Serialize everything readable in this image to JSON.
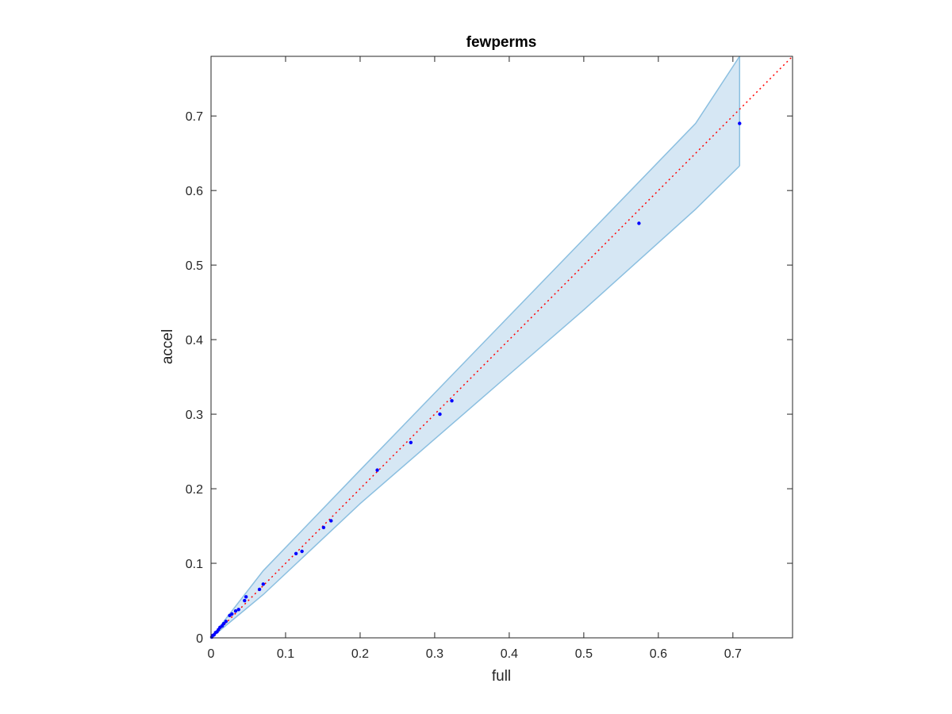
{
  "chart_data": {
    "type": "scatter",
    "title": "fewperms",
    "xlabel": "full",
    "ylabel": "accel",
    "xlim": [
      0,
      0.78
    ],
    "ylim": [
      0,
      0.78
    ],
    "grid": false,
    "legend": "none",
    "x_ticks": [
      "0",
      "0.1",
      "0.2",
      "0.3",
      "0.4",
      "0.5",
      "0.6",
      "0.7"
    ],
    "y_ticks": [
      "0",
      "0.1",
      "0.2",
      "0.3",
      "0.4",
      "0.5",
      "0.6",
      "0.7"
    ],
    "x_tick_values": [
      0,
      0.1,
      0.2,
      0.3,
      0.4,
      0.5,
      0.6,
      0.7
    ],
    "y_tick_values": [
      0,
      0.1,
      0.2,
      0.3,
      0.4,
      0.5,
      0.6,
      0.7
    ],
    "colors": {
      "points": "#0000ff",
      "reference_line": "#ff0000",
      "band_fill": "#d6e7f4",
      "band_edge": "#8bbfe0",
      "axes": "#262626"
    },
    "points": [
      [
        0.001,
        0.001
      ],
      [
        0.002,
        0.003
      ],
      [
        0.004,
        0.004
      ],
      [
        0.006,
        0.007
      ],
      [
        0.008,
        0.008
      ],
      [
        0.01,
        0.011
      ],
      [
        0.012,
        0.014
      ],
      [
        0.015,
        0.016
      ],
      [
        0.017,
        0.019
      ],
      [
        0.02,
        0.022
      ],
      [
        0.025,
        0.03
      ],
      [
        0.028,
        0.032
      ],
      [
        0.033,
        0.036
      ],
      [
        0.037,
        0.038
      ],
      [
        0.045,
        0.05
      ],
      [
        0.047,
        0.055
      ],
      [
        0.065,
        0.065
      ],
      [
        0.07,
        0.072
      ],
      [
        0.114,
        0.113
      ],
      [
        0.122,
        0.116
      ],
      [
        0.151,
        0.148
      ],
      [
        0.161,
        0.157
      ],
      [
        0.223,
        0.225
      ],
      [
        0.268,
        0.262
      ],
      [
        0.307,
        0.3
      ],
      [
        0.323,
        0.318
      ],
      [
        0.574,
        0.556
      ],
      [
        0.709,
        0.69
      ]
    ],
    "reference_line": {
      "style": "dotted",
      "from": [
        0,
        0
      ],
      "to": [
        0.78,
        0.78
      ]
    },
    "confidence_band": {
      "upper": [
        [
          0,
          0
        ],
        [
          0.07,
          0.09
        ],
        [
          0.2,
          0.225
        ],
        [
          0.35,
          0.38
        ],
        [
          0.5,
          0.535
        ],
        [
          0.65,
          0.69
        ],
        [
          0.709,
          0.78
        ]
      ],
      "lower": [
        [
          0,
          0
        ],
        [
          0.07,
          0.058
        ],
        [
          0.2,
          0.18
        ],
        [
          0.35,
          0.31
        ],
        [
          0.5,
          0.44
        ],
        [
          0.65,
          0.575
        ],
        [
          0.709,
          0.633
        ]
      ]
    }
  }
}
